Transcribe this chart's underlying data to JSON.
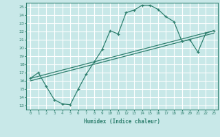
{
  "xlabel": "Humidex (Indice chaleur)",
  "bg_color": "#c8e8e8",
  "grid_color": "#ffffff",
  "line_color": "#2e7f6e",
  "xlim": [
    -0.5,
    23.5
  ],
  "ylim": [
    12.5,
    25.5
  ],
  "xticks": [
    0,
    1,
    2,
    3,
    4,
    5,
    6,
    7,
    8,
    9,
    10,
    11,
    12,
    13,
    14,
    15,
    16,
    17,
    18,
    19,
    20,
    21,
    22,
    23
  ],
  "yticks": [
    13,
    14,
    15,
    16,
    17,
    18,
    19,
    20,
    21,
    22,
    23,
    24,
    25
  ],
  "line1_x": [
    0,
    1,
    2,
    3,
    4,
    5,
    6,
    7,
    8,
    9,
    10,
    11,
    12,
    13,
    14,
    15,
    16,
    17,
    18,
    19,
    20,
    21,
    22,
    23
  ],
  "line1_y": [
    16.3,
    17.0,
    15.3,
    13.7,
    13.2,
    13.1,
    15.0,
    16.8,
    18.3,
    19.8,
    22.1,
    21.7,
    24.3,
    24.6,
    25.2,
    25.2,
    24.7,
    23.8,
    23.2,
    20.8,
    21.0,
    19.5,
    21.8,
    22.1
  ],
  "line2_x": [
    0,
    23
  ],
  "line2_y": [
    16.3,
    22.1
  ],
  "line3_x": [
    0,
    23
  ],
  "line3_y": [
    16.0,
    21.8
  ]
}
